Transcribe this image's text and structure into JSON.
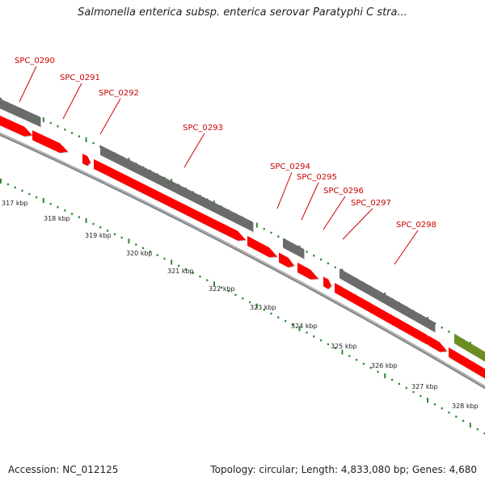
{
  "header": {
    "title": "Salmonella enterica subsp. enterica serovar Paratyphi C stra..."
  },
  "footer": {
    "accession": "Accession: NC_012125",
    "summary": "Topology: circular; Length: 4,833,080 bp; Genes: 4,680"
  },
  "colors": {
    "forward_gene": "#ff0000",
    "other_gene": "#6b6b6b",
    "rna_gene": "#6b8e23",
    "backbone": "#8a8a8a",
    "tick": "#2a8a2a",
    "label": "#cc0000"
  },
  "gene_labels": [
    "SPC_0290",
    "SPC_0291",
    "SPC_0292",
    "SPC_0293",
    "SPC_0294",
    "SPC_0295",
    "SPC_0296",
    "SPC_0297",
    "SPC_0298"
  ],
  "kbp_ticks": [
    "317 kbp",
    "318 kbp",
    "319 kbp",
    "320 kbp",
    "321 kbp",
    "322 kbp",
    "323 kbp",
    "324 kbp",
    "325 kbp",
    "326 kbp",
    "327 kbp",
    "328 kbp"
  ]
}
